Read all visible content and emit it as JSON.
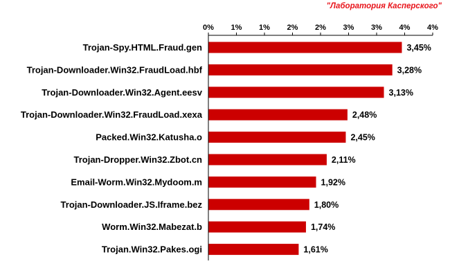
{
  "watermark": "\"Лаборатория Касперского\"",
  "colors": {
    "bar": "#cc0000",
    "watermark": "#e8141b"
  },
  "chart_data": {
    "type": "bar",
    "orientation": "horizontal",
    "axis_position": "top",
    "xlim": [
      0,
      4
    ],
    "tick_values": [
      0,
      0.5,
      1,
      1.5,
      2,
      2.5,
      3,
      3.5,
      4
    ],
    "tick_labels": [
      "0%",
      "1%",
      "1%",
      "2%",
      "2%",
      "3%",
      "3%",
      "4%",
      "4%"
    ],
    "categories": [
      "Trojan-Spy.HTML.Fraud.gen",
      "Trojan-Downloader.Win32.FraudLoad.hbf",
      "Trojan-Downloader.Win32.Agent.eesv",
      "Trojan-Downloader.Win32.FraudLoad.xexa",
      "Packed.Win32.Katusha.o",
      "Trojan-Dropper.Win32.Zbot.cn",
      "Email-Worm.Win32.Mydoom.m",
      "Trojan-Downloader.JS.Iframe.bez",
      "Worm.Win32.Mabezat.b",
      "Trojan.Win32.Pakes.ogi"
    ],
    "values": [
      3.45,
      3.28,
      3.13,
      2.48,
      2.45,
      2.11,
      1.92,
      1.8,
      1.74,
      1.61
    ],
    "value_labels": [
      "3,45%",
      "3,28%",
      "3,13%",
      "2,48%",
      "2,45%",
      "2,11%",
      "1,92%",
      "1,80%",
      "1,74%",
      "1,61%"
    ],
    "grid": false,
    "legend": "none"
  }
}
